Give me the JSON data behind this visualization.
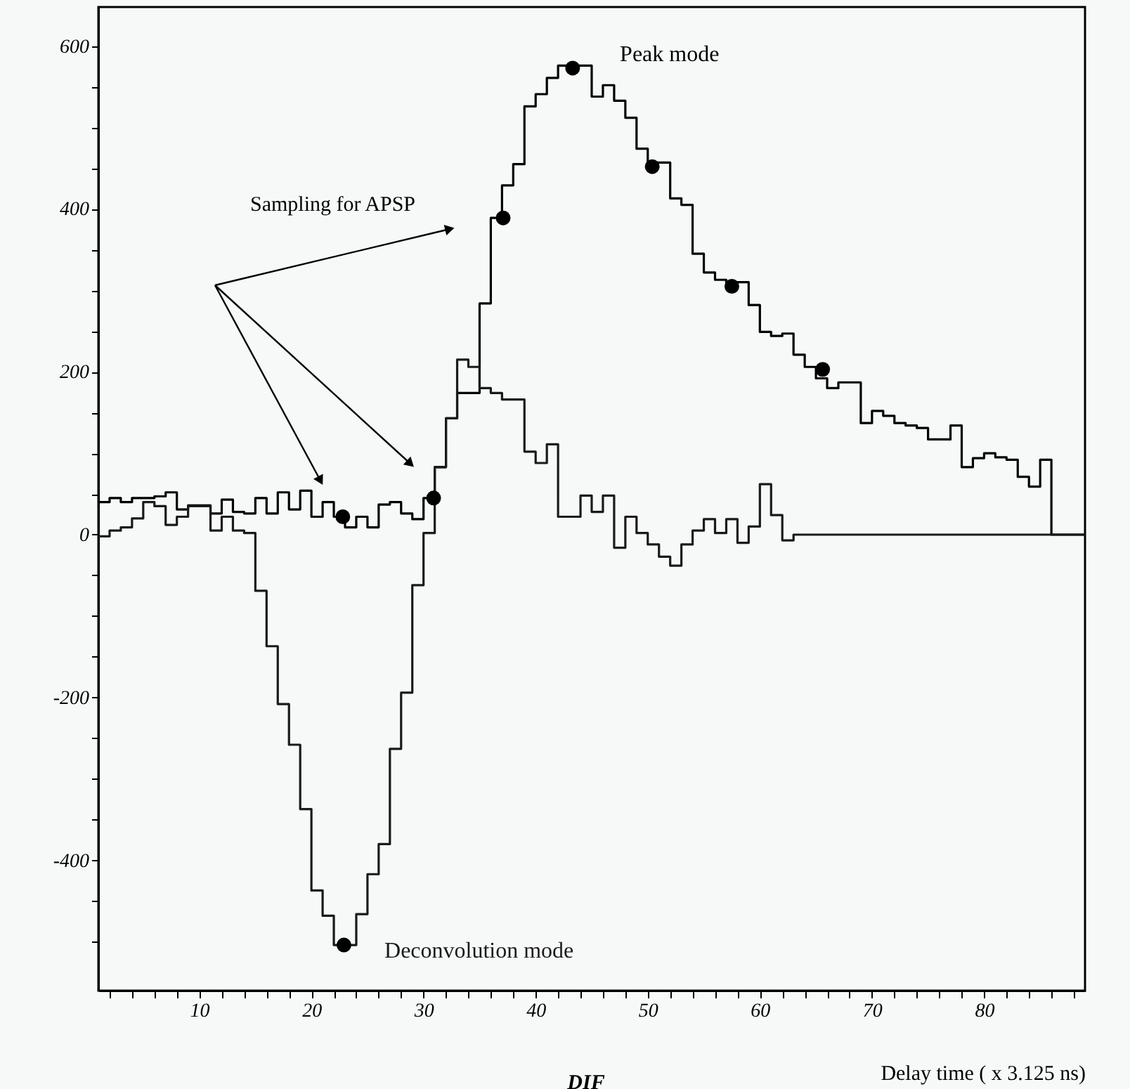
{
  "chart_data": {
    "type": "histogram",
    "xlabel": "Delay time ( x 3.125 ns)",
    "annotations": [
      "Sampling for APSP",
      "DIF"
    ],
    "bins": [
      1,
      2,
      3,
      4,
      5,
      6,
      7,
      8,
      9,
      10,
      11,
      12,
      13,
      14,
      15,
      16,
      17,
      18,
      19,
      20,
      21,
      22,
      23,
      24,
      25,
      26,
      27,
      28,
      29,
      30,
      31,
      32,
      33,
      34,
      35,
      36,
      37,
      38,
      39,
      40,
      41,
      42,
      43,
      44,
      45,
      46,
      47,
      48,
      49,
      50,
      51,
      52,
      53,
      54,
      55,
      56,
      57,
      58,
      59,
      60,
      61,
      62,
      63,
      64,
      65,
      66,
      67,
      68,
      69,
      70,
      71,
      72,
      73,
      74,
      75,
      76,
      77,
      78,
      79,
      80,
      81,
      82,
      83,
      84,
      85,
      86,
      87,
      88,
      89
    ],
    "series": [
      {
        "name": "Peak mode",
        "color": "#000000",
        "values": [
          40,
          45,
          40,
          45,
          45,
          47,
          52,
          31,
          36,
          36,
          26,
          43,
          28,
          26,
          45,
          26,
          52,
          31,
          54,
          22,
          40,
          22,
          9,
          22,
          9,
          37,
          40,
          26,
          19,
          45,
          83,
          143,
          174,
          174,
          284,
          389,
          429,
          455,
          526,
          541,
          561,
          576,
          576,
          576,
          538,
          552,
          533,
          512,
          474,
          457,
          457,
          413,
          405,
          345,
          322,
          313,
          310,
          310,
          282,
          249,
          244,
          247,
          221,
          206,
          192,
          180,
          187,
          187,
          137,
          152,
          146,
          137,
          134,
          131,
          117,
          117,
          134,
          83,
          94,
          100,
          95,
          92,
          71,
          59,
          92,
          0,
          0,
          0
        ]
      },
      {
        "name": "Deconvolution mode",
        "color": "#1a1a1a",
        "values": [
          -2,
          5,
          9,
          20,
          40,
          35,
          12,
          22,
          35,
          35,
          5,
          22,
          5,
          2,
          -69,
          -137,
          -208,
          -258,
          -337,
          -437,
          -468,
          -504,
          -504,
          -466,
          -417,
          -380,
          -263,
          -194,
          -62,
          2,
          83,
          143,
          215,
          206,
          180,
          174,
          166,
          166,
          102,
          88,
          111,
          22,
          22,
          48,
          28,
          48,
          -16,
          22,
          2,
          -12,
          -27,
          -38,
          -12,
          5,
          19,
          2,
          19,
          -10,
          10,
          62,
          24,
          -7,
          0,
          0,
          0,
          0,
          0,
          0,
          0,
          0,
          0,
          0,
          0,
          0,
          0,
          0,
          0,
          0,
          0,
          0,
          0,
          0,
          0,
          0,
          0,
          0,
          0,
          0
        ]
      },
      {
        "type": "scatter",
        "marker": "circle",
        "color": "#000000",
        "x": [
          22.8,
          30.9,
          37.1,
          43.3,
          50.4,
          57.5,
          65.6,
          22.9
        ],
        "values": [
          22,
          45,
          389,
          573,
          452,
          305,
          203,
          -504
        ]
      }
    ],
    "xlim": [
      1,
      89
    ],
    "ylim": [
      -560,
      648
    ],
    "xticks": [
      {
        "value": 2,
        "label": null
      },
      {
        "value": 4,
        "label": null
      },
      {
        "value": 6,
        "label": null
      },
      {
        "value": 8,
        "label": null
      },
      10,
      {
        "value": 12,
        "label": null
      },
      {
        "value": 14,
        "label": null
      },
      {
        "value": 16,
        "label": null
      },
      {
        "value": 18,
        "label": null
      },
      20,
      {
        "value": 22,
        "label": null
      },
      {
        "value": 24,
        "label": null
      },
      {
        "value": 26,
        "label": null
      },
      {
        "value": 28,
        "label": null
      },
      30,
      {
        "value": 32,
        "label": null
      },
      {
        "value": 34,
        "label": null
      },
      {
        "value": 36,
        "label": null
      },
      {
        "value": 38,
        "label": null
      },
      40,
      {
        "value": 42,
        "label": null
      },
      {
        "value": 44,
        "label": null
      },
      {
        "value": 46,
        "label": null
      },
      {
        "value": 48,
        "label": null
      },
      50,
      {
        "value": 52,
        "label": null
      },
      {
        "value": 54,
        "label": null
      },
      {
        "value": 56,
        "label": null
      },
      {
        "value": 58,
        "label": null
      },
      60,
      {
        "value": 62,
        "label": null
      },
      {
        "value": 64,
        "label": null
      },
      {
        "value": 66,
        "label": null
      },
      {
        "value": 68,
        "label": null
      },
      70,
      {
        "value": 72,
        "label": null
      },
      {
        "value": 74,
        "label": null
      },
      {
        "value": 76,
        "label": null
      },
      {
        "value": 78,
        "label": null
      },
      80,
      {
        "value": 82,
        "label": null
      },
      {
        "value": 84,
        "label": null
      },
      {
        "value": 86,
        "label": null
      },
      {
        "value": 88,
        "label": null
      }
    ],
    "yticks": [
      {
        "value": -500,
        "label": null
      },
      {
        "value": -450,
        "label": null
      },
      -400,
      {
        "value": -350,
        "label": null
      },
      {
        "value": -300,
        "label": null
      },
      {
        "value": -250,
        "label": null
      },
      -200,
      {
        "value": -150,
        "label": null
      },
      {
        "value": -100,
        "label": null
      },
      {
        "value": -50,
        "label": null
      },
      0,
      {
        "value": 50,
        "label": null
      },
      {
        "value": 100,
        "label": null
      },
      {
        "value": 150,
        "label": null
      },
      200,
      {
        "value": 250,
        "label": null
      },
      {
        "value": 300,
        "label": null
      },
      {
        "value": 350,
        "label": null
      },
      400,
      {
        "value": 450,
        "label": null
      },
      {
        "value": 500,
        "label": null
      },
      {
        "value": 550,
        "label": null
      },
      600
    ],
    "grid": false
  }
}
